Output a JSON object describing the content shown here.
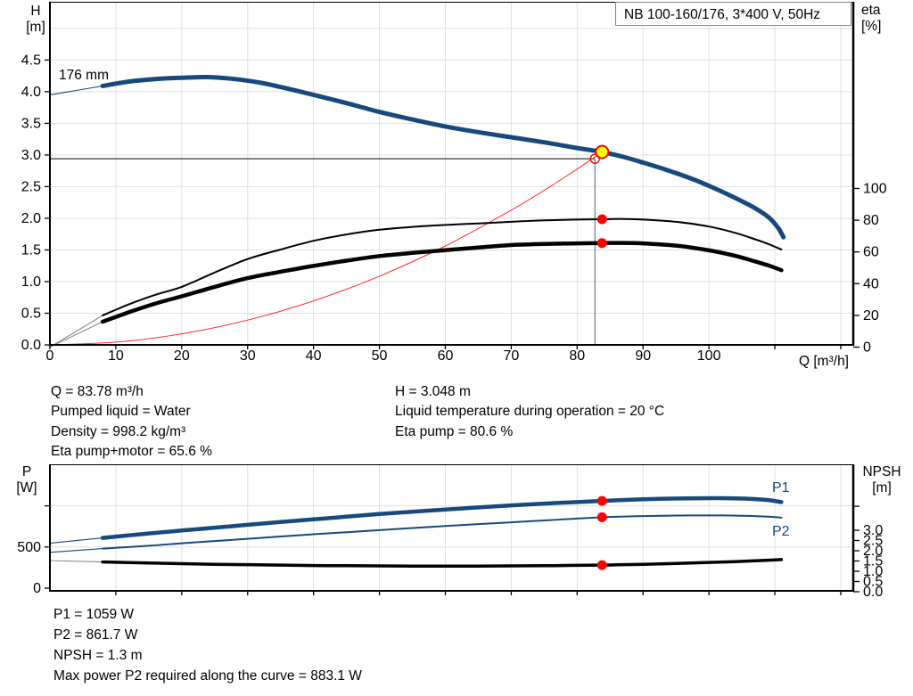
{
  "title": "NB 100-160/176, 3*400 V, 50Hz",
  "colors": {
    "curve_blue": "#17497c",
    "curve_black": "#000000",
    "curve_red": "#ff2a2a",
    "dot_red": "#ff0000",
    "duty_yellow": "#ffff00",
    "grid": "#e0e0e0",
    "axis": "#000000",
    "lead_gray": "#8c8c8c",
    "op_line_gray": "#7a7a7a"
  },
  "top_chart": {
    "left_axis_title": [
      "H",
      "[m]"
    ],
    "right_axis_title": [
      "eta",
      "[%]"
    ],
    "x_axis_title": "Q [m³/h]",
    "impeller_label": "176 mm"
  },
  "bottom_chart": {
    "left_axis_title": [
      "P",
      "[W]"
    ],
    "right_axis_title": [
      "NPSH",
      "[m]"
    ],
    "p1_label": "P1",
    "p2_label": "P2"
  },
  "info_top_left": [
    "Q = 83.78 m³/h",
    "Pumped liquid = Water",
    "Density = 998.2 kg/m³",
    "Eta pump+motor = 65.6 %"
  ],
  "info_top_right": [
    "H = 3.048 m",
    "Liquid temperature during operation = 20 °C",
    "Eta pump = 80.6 %"
  ],
  "info_bottom": [
    "P1 = 1059 W",
    "P2 = 861.7 W",
    "NPSH = 1.3 m",
    "Max power P2 required along the curve = 883.1 W"
  ],
  "chart_data": [
    {
      "type": "line",
      "title": "NB 100-160/176, 3*400 V, 50Hz",
      "xlabel": "Q [m³/h]",
      "ylabel": "H [m]",
      "y2label": "eta [%]",
      "xlim": [
        0,
        121.9
      ],
      "ylim": [
        0,
        5.42
      ],
      "y2lim": [
        0,
        100
      ],
      "grid": true,
      "x_ticks": [
        {
          "v": 0,
          "label": "0"
        },
        {
          "v": 10,
          "label": "10"
        },
        {
          "v": 20,
          "label": "20"
        },
        {
          "v": 30,
          "label": "30"
        },
        {
          "v": 40,
          "label": "40"
        },
        {
          "v": 50,
          "label": "50"
        },
        {
          "v": 60,
          "label": "60"
        },
        {
          "v": 70,
          "label": "70"
        },
        {
          "v": 80,
          "label": "80"
        },
        {
          "v": 90,
          "label": "90"
        },
        {
          "v": 100,
          "label": "100"
        },
        {
          "v": 110,
          "label": ""
        },
        {
          "v": 120,
          "label": ""
        }
      ],
      "y_ticks": [
        {
          "v": 0,
          "label": "0.0"
        },
        {
          "v": 0.5,
          "label": "0.5"
        },
        {
          "v": 1,
          "label": "1.0"
        },
        {
          "v": 1.5,
          "label": "1.5"
        },
        {
          "v": 2,
          "label": "2.0"
        },
        {
          "v": 2.5,
          "label": "2.5"
        },
        {
          "v": 3,
          "label": "3.0"
        },
        {
          "v": 3.5,
          "label": "3.5"
        },
        {
          "v": 4,
          "label": "4.0"
        },
        {
          "v": 4.5,
          "label": "4.5"
        }
      ],
      "y2_ticks": [
        {
          "v": 0,
          "label": "0"
        },
        {
          "v": 20,
          "label": "20"
        },
        {
          "v": 40,
          "label": "40"
        },
        {
          "v": 60,
          "label": "60"
        },
        {
          "v": 80,
          "label": "80"
        },
        {
          "v": 100,
          "label": "100"
        }
      ],
      "grid_x": [
        10,
        20,
        30,
        40,
        50,
        60,
        70,
        80,
        90,
        100,
        110,
        120
      ],
      "grid_y": [
        0.5,
        1,
        1.5,
        2,
        2.5,
        3,
        3.5,
        4,
        4.5,
        5
      ],
      "series": [
        {
          "name": "system-curve",
          "axis": "y",
          "color": "curve_red",
          "width": 1,
          "points": [
            [
              0,
              0
            ],
            [
              10,
              0.043
            ],
            [
              20,
              0.174
            ],
            [
              30,
              0.391
            ],
            [
              40,
              0.695
            ],
            [
              50,
              1.086
            ],
            [
              60,
              1.563
            ],
            [
              70,
              2.128
            ],
            [
              76,
              2.508
            ],
            [
              80,
              2.778
            ],
            [
              83.78,
              3.048
            ]
          ]
        },
        {
          "name": "eta-pump-motor-curve",
          "axis": "y2",
          "color": "curve_black",
          "width": 4.5,
          "lead_split": 8,
          "lead_color": "lead_gray",
          "points": [
            [
              0,
              0
            ],
            [
              8,
              16
            ],
            [
              12,
              22
            ],
            [
              16,
              27.5
            ],
            [
              20,
              32
            ],
            [
              25,
              38
            ],
            [
              30,
              43.5
            ],
            [
              35,
              47.5
            ],
            [
              40,
              51.2
            ],
            [
              45,
              54.5
            ],
            [
              50,
              57.4
            ],
            [
              55,
              59.4
            ],
            [
              60,
              61.1
            ],
            [
              65,
              62.8
            ],
            [
              70,
              64.3
            ],
            [
              75,
              65
            ],
            [
              80,
              65.4
            ],
            [
              83.78,
              65.6
            ],
            [
              87,
              65.7
            ],
            [
              90,
              65.4
            ],
            [
              95,
              64
            ],
            [
              100,
              61
            ],
            [
              104,
              57.5
            ],
            [
              107,
              54
            ],
            [
              109,
              51.5
            ],
            [
              111,
              48.5
            ]
          ]
        },
        {
          "name": "eta-pump-curve",
          "axis": "y2",
          "color": "curve_black",
          "width": 2,
          "lead_split": 8,
          "lead_color": "lead_gray",
          "points": [
            [
              0,
              0
            ],
            [
              8,
              20
            ],
            [
              12,
              27
            ],
            [
              16,
              33
            ],
            [
              20,
              38
            ],
            [
              25,
              47
            ],
            [
              30,
              55.5
            ],
            [
              35,
              61.5
            ],
            [
              40,
              67
            ],
            [
              45,
              71
            ],
            [
              50,
              74
            ],
            [
              55,
              75.8
            ],
            [
              60,
              77
            ],
            [
              65,
              78
            ],
            [
              70,
              79
            ],
            [
              75,
              79.9
            ],
            [
              80,
              80.4
            ],
            [
              83.78,
              80.6
            ],
            [
              87,
              80.8
            ],
            [
              90,
              80.4
            ],
            [
              95,
              79
            ],
            [
              100,
              76
            ],
            [
              104,
              72
            ],
            [
              107,
              68
            ],
            [
              109,
              65
            ],
            [
              111,
              61.5
            ]
          ]
        },
        {
          "name": "head-curve",
          "axis": "y",
          "color": "curve_blue",
          "width": 5,
          "lead_split": 8,
          "lead_color": "curve_blue",
          "points": [
            [
              0,
              3.95
            ],
            [
              4,
              4.02
            ],
            [
              8,
              4.09
            ],
            [
              12,
              4.16
            ],
            [
              16,
              4.2
            ],
            [
              20,
              4.22
            ],
            [
              24,
              4.23
            ],
            [
              28,
              4.2
            ],
            [
              32,
              4.14
            ],
            [
              36,
              4.05
            ],
            [
              40,
              3.95
            ],
            [
              45,
              3.82
            ],
            [
              50,
              3.68
            ],
            [
              55,
              3.56
            ],
            [
              60,
              3.45
            ],
            [
              65,
              3.36
            ],
            [
              70,
              3.28
            ],
            [
              75,
              3.2
            ],
            [
              80,
              3.11
            ],
            [
              83.78,
              3.048
            ],
            [
              87,
              2.97
            ],
            [
              90,
              2.88
            ],
            [
              94,
              2.75
            ],
            [
              98,
              2.6
            ],
            [
              102,
              2.42
            ],
            [
              105,
              2.27
            ],
            [
              107,
              2.16
            ],
            [
              109,
              2.02
            ],
            [
              110.5,
              1.85
            ],
            [
              111.3,
              1.7
            ]
          ]
        }
      ],
      "duty_point": {
        "q": 83.78,
        "h": 3.048
      },
      "requested_point": {
        "q": 82.7,
        "h": 2.94
      },
      "marker_dots": [
        {
          "q": 83.78,
          "axis": "y2",
          "v": 80.6
        },
        {
          "q": 83.78,
          "axis": "y2",
          "v": 65.6
        }
      ]
    },
    {
      "type": "line",
      "xlabel": "",
      "ylabel": "P [W]",
      "y2label": "NPSH [m]",
      "xlim": [
        0,
        121.9
      ],
      "ylim": [
        0,
        1545
      ],
      "y2lim": [
        0,
        4.3
      ],
      "grid": true,
      "x_ticks": [
        {
          "v": 10,
          "label": ""
        },
        {
          "v": 20,
          "label": ""
        },
        {
          "v": 30,
          "label": ""
        },
        {
          "v": 40,
          "label": ""
        },
        {
          "v": 50,
          "label": ""
        },
        {
          "v": 60,
          "label": ""
        },
        {
          "v": 70,
          "label": ""
        },
        {
          "v": 80,
          "label": ""
        },
        {
          "v": 90,
          "label": ""
        },
        {
          "v": 100,
          "label": ""
        },
        {
          "v": 110,
          "label": ""
        },
        {
          "v": 120,
          "label": ""
        }
      ],
      "y_ticks": [
        {
          "v": 0,
          "label": "0"
        },
        {
          "v": 500,
          "label": "500"
        },
        {
          "v": 1000,
          "label": ""
        }
      ],
      "y2_ticks": [
        {
          "v": 0,
          "label": "0.0"
        },
        {
          "v": 0.5,
          "label": "0.5"
        },
        {
          "v": 1,
          "label": "1.0"
        },
        {
          "v": 1.5,
          "label": "1.5"
        },
        {
          "v": 2,
          "label": "2.0"
        },
        {
          "v": 2.5,
          "label": "2.5"
        },
        {
          "v": 3,
          "label": "3.0"
        },
        {
          "v": 4.17,
          "label": ""
        }
      ],
      "grid_x": [
        10,
        20,
        30,
        40,
        50,
        60,
        70,
        80,
        90,
        100,
        110,
        120
      ],
      "grid_y": [
        500,
        1000
      ],
      "series": [
        {
          "name": "npsh-curve",
          "axis": "y2",
          "color": "curve_black",
          "width": 3.5,
          "lead_split": 8,
          "lead_color": "lead_gray",
          "points": [
            [
              0,
              1.52
            ],
            [
              8,
              1.45
            ],
            [
              15,
              1.4
            ],
            [
              20,
              1.37
            ],
            [
              25,
              1.34
            ],
            [
              30,
              1.32
            ],
            [
              35,
              1.3
            ],
            [
              40,
              1.28
            ],
            [
              45,
              1.27
            ],
            [
              50,
              1.26
            ],
            [
              55,
              1.25
            ],
            [
              60,
              1.25
            ],
            [
              65,
              1.25
            ],
            [
              70,
              1.26
            ],
            [
              75,
              1.27
            ],
            [
              80,
              1.285
            ],
            [
              83.78,
              1.3
            ],
            [
              87,
              1.32
            ],
            [
              90,
              1.34
            ],
            [
              95,
              1.38
            ],
            [
              100,
              1.43
            ],
            [
              104,
              1.47
            ],
            [
              107,
              1.51
            ],
            [
              109,
              1.54
            ],
            [
              111,
              1.57
            ]
          ]
        },
        {
          "name": "p2-curve",
          "axis": "y",
          "color": "curve_blue",
          "width": 2,
          "lead_split": 8,
          "lead_color": "curve_blue",
          "points": [
            [
              0,
              435
            ],
            [
              8,
              480
            ],
            [
              15,
              515
            ],
            [
              20,
              545
            ],
            [
              25,
              573
            ],
            [
              30,
              600
            ],
            [
              35,
              628
            ],
            [
              40,
              655
            ],
            [
              45,
              680
            ],
            [
              50,
              705
            ],
            [
              55,
              730
            ],
            [
              60,
              755
            ],
            [
              65,
              778
            ],
            [
              70,
              800
            ],
            [
              75,
              823
            ],
            [
              80,
              845
            ],
            [
              83.78,
              861.7
            ],
            [
              87,
              870
            ],
            [
              90,
              876
            ],
            [
              95,
              881.5
            ],
            [
              100,
              883
            ],
            [
              103,
              882
            ],
            [
              106,
              878
            ],
            [
              109,
              868
            ],
            [
              111,
              856
            ]
          ]
        },
        {
          "name": "p1-curve",
          "axis": "y",
          "color": "curve_blue",
          "width": 4.5,
          "lead_split": 8,
          "lead_color": "curve_blue",
          "points": [
            [
              0,
              545
            ],
            [
              8,
              610
            ],
            [
              15,
              665
            ],
            [
              20,
              700
            ],
            [
              25,
              735
            ],
            [
              30,
              770
            ],
            [
              35,
              803
            ],
            [
              40,
              835
            ],
            [
              45,
              868
            ],
            [
              50,
              900
            ],
            [
              55,
              928
            ],
            [
              60,
              955
            ],
            [
              65,
              980
            ],
            [
              70,
              1005
            ],
            [
              75,
              1027
            ],
            [
              80,
              1045
            ],
            [
              83.78,
              1059
            ],
            [
              87,
              1070
            ],
            [
              90,
              1079
            ],
            [
              95,
              1089
            ],
            [
              100,
              1093
            ],
            [
              103,
              1092
            ],
            [
              106,
              1086
            ],
            [
              109,
              1070
            ],
            [
              111,
              1045
            ]
          ]
        }
      ],
      "marker_dots": [
        {
          "q": 83.78,
          "axis": "y",
          "v": 1059
        },
        {
          "q": 83.78,
          "axis": "y",
          "v": 861.7
        },
        {
          "q": 83.78,
          "axis": "y2",
          "v": 1.3
        }
      ]
    }
  ]
}
